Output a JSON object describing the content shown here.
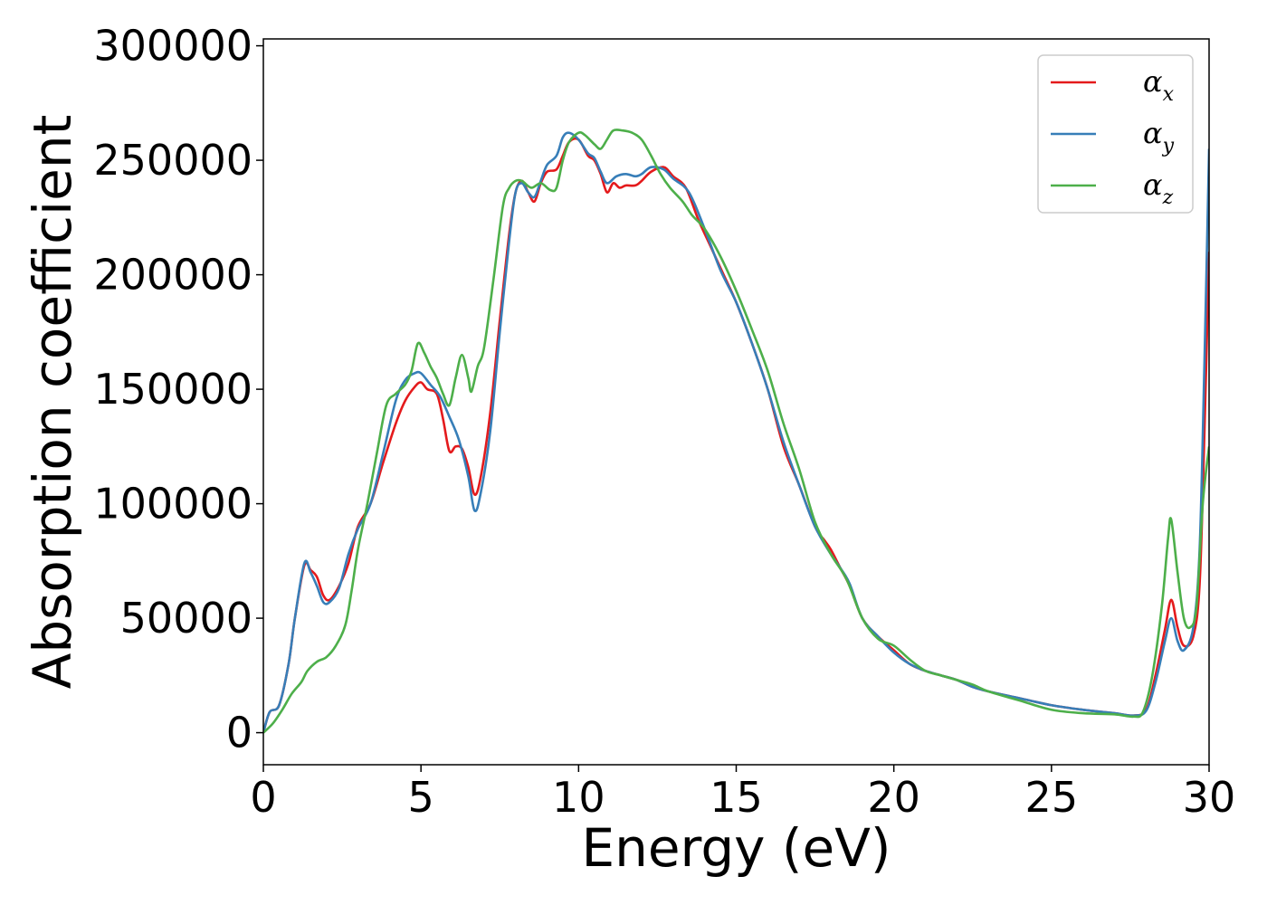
{
  "chart_data": {
    "type": "line",
    "title": "",
    "xlabel": "Energy (eV)",
    "ylabel": "Absorption coefficient",
    "xlim": [
      0,
      30
    ],
    "ylim": [
      -14000,
      303000
    ],
    "xticks": [
      0,
      5,
      10,
      15,
      20,
      25,
      30
    ],
    "xtick_labels": [
      "0",
      "5",
      "10",
      "15",
      "20",
      "25",
      "30"
    ],
    "yticks": [
      0,
      50000,
      100000,
      150000,
      200000,
      250000,
      300000
    ],
    "ytick_labels": [
      "0",
      "50000",
      "100000",
      "150000",
      "200000",
      "250000",
      "300000"
    ],
    "grid": false,
    "legend": {
      "placement": "top-right",
      "entries": [
        {
          "symbol": "α",
          "sub": "x",
          "color": "#e41a1c"
        },
        {
          "symbol": "α",
          "sub": "y",
          "color": "#377eb8"
        },
        {
          "symbol": "α",
          "sub": "z",
          "color": "#4daf4a"
        }
      ]
    },
    "series": [
      {
        "name": "αx",
        "color": "#e41a1c",
        "points": [
          [
            0,
            0
          ],
          [
            0.2,
            9000
          ],
          [
            0.5,
            12000
          ],
          [
            0.8,
            30000
          ],
          [
            1.0,
            50000
          ],
          [
            1.3,
            73000
          ],
          [
            1.5,
            71000
          ],
          [
            1.7,
            68000
          ],
          [
            1.9,
            60000
          ],
          [
            2.1,
            58000
          ],
          [
            2.4,
            64000
          ],
          [
            2.7,
            74000
          ],
          [
            3.0,
            90000
          ],
          [
            3.4,
            100000
          ],
          [
            3.8,
            118000
          ],
          [
            4.2,
            135000
          ],
          [
            4.5,
            145000
          ],
          [
            4.8,
            151000
          ],
          [
            5.0,
            153000
          ],
          [
            5.2,
            150000
          ],
          [
            5.5,
            148000
          ],
          [
            5.7,
            137000
          ],
          [
            5.9,
            123000
          ],
          [
            6.1,
            125000
          ],
          [
            6.3,
            124000
          ],
          [
            6.5,
            116000
          ],
          [
            6.7,
            104000
          ],
          [
            6.9,
            112000
          ],
          [
            7.2,
            140000
          ],
          [
            7.5,
            180000
          ],
          [
            7.8,
            218000
          ],
          [
            8.0,
            236000
          ],
          [
            8.2,
            241000
          ],
          [
            8.4,
            236000
          ],
          [
            8.6,
            232000
          ],
          [
            8.8,
            240000
          ],
          [
            9.0,
            245000
          ],
          [
            9.3,
            246000
          ],
          [
            9.5,
            252000
          ],
          [
            9.7,
            258000
          ],
          [
            10.0,
            259000
          ],
          [
            10.3,
            252000
          ],
          [
            10.5,
            250000
          ],
          [
            10.7,
            244000
          ],
          [
            10.9,
            236000
          ],
          [
            11.1,
            240000
          ],
          [
            11.3,
            238000
          ],
          [
            11.5,
            239000
          ],
          [
            11.8,
            239000
          ],
          [
            12.0,
            241000
          ],
          [
            12.3,
            245000
          ],
          [
            12.7,
            247000
          ],
          [
            13.0,
            243000
          ],
          [
            13.4,
            238000
          ],
          [
            13.8,
            224000
          ],
          [
            14.2,
            212000
          ],
          [
            14.6,
            200000
          ],
          [
            15.0,
            188000
          ],
          [
            15.5,
            170000
          ],
          [
            16.0,
            150000
          ],
          [
            16.5,
            125000
          ],
          [
            17.0,
            108000
          ],
          [
            17.5,
            90000
          ],
          [
            17.8,
            84000
          ],
          [
            18.0,
            80000
          ],
          [
            18.3,
            72000
          ],
          [
            18.6,
            64000
          ],
          [
            19.0,
            50000
          ],
          [
            19.5,
            42000
          ],
          [
            20.0,
            36000
          ],
          [
            20.5,
            30000
          ],
          [
            21.0,
            27000
          ],
          [
            21.5,
            25000
          ],
          [
            22.0,
            23000
          ],
          [
            22.5,
            20000
          ],
          [
            23.0,
            18000
          ],
          [
            24.0,
            15000
          ],
          [
            25.0,
            12000
          ],
          [
            26.0,
            10000
          ],
          [
            27.0,
            8500
          ],
          [
            27.6,
            7500
          ],
          [
            28.0,
            10000
          ],
          [
            28.3,
            25000
          ],
          [
            28.6,
            45000
          ],
          [
            28.8,
            58000
          ],
          [
            29.0,
            46000
          ],
          [
            29.2,
            38000
          ],
          [
            29.5,
            42000
          ],
          [
            29.7,
            65000
          ],
          [
            29.85,
            130000
          ],
          [
            30.0,
            210000
          ]
        ]
      },
      {
        "name": "αy",
        "color": "#377eb8",
        "points": [
          [
            0,
            0
          ],
          [
            0.2,
            9000
          ],
          [
            0.5,
            12000
          ],
          [
            0.8,
            30000
          ],
          [
            1.0,
            50000
          ],
          [
            1.3,
            74000
          ],
          [
            1.5,
            70000
          ],
          [
            1.7,
            64000
          ],
          [
            1.9,
            57000
          ],
          [
            2.1,
            57000
          ],
          [
            2.4,
            63000
          ],
          [
            2.7,
            78000
          ],
          [
            3.0,
            89000
          ],
          [
            3.4,
            100000
          ],
          [
            3.8,
            122000
          ],
          [
            4.2,
            145000
          ],
          [
            4.5,
            154000
          ],
          [
            4.8,
            157000
          ],
          [
            5.0,
            157000
          ],
          [
            5.3,
            152000
          ],
          [
            5.6,
            147000
          ],
          [
            5.9,
            138000
          ],
          [
            6.2,
            128000
          ],
          [
            6.5,
            112000
          ],
          [
            6.7,
            97000
          ],
          [
            6.9,
            105000
          ],
          [
            7.2,
            132000
          ],
          [
            7.5,
            175000
          ],
          [
            7.8,
            215000
          ],
          [
            8.0,
            236000
          ],
          [
            8.2,
            240000
          ],
          [
            8.4,
            236000
          ],
          [
            8.6,
            234000
          ],
          [
            8.8,
            241000
          ],
          [
            9.0,
            248000
          ],
          [
            9.3,
            252000
          ],
          [
            9.5,
            260000
          ],
          [
            9.7,
            262000
          ],
          [
            10.0,
            259000
          ],
          [
            10.3,
            253000
          ],
          [
            10.5,
            251000
          ],
          [
            10.7,
            245000
          ],
          [
            10.9,
            240000
          ],
          [
            11.2,
            243000
          ],
          [
            11.5,
            244000
          ],
          [
            11.8,
            243000
          ],
          [
            12.0,
            244000
          ],
          [
            12.3,
            247000
          ],
          [
            12.7,
            246000
          ],
          [
            13.0,
            242000
          ],
          [
            13.5,
            236000
          ],
          [
            14.0,
            220000
          ],
          [
            14.5,
            202000
          ],
          [
            15.0,
            188000
          ],
          [
            15.5,
            170000
          ],
          [
            16.0,
            150000
          ],
          [
            16.5,
            127000
          ],
          [
            17.0,
            108000
          ],
          [
            17.5,
            90000
          ],
          [
            18.0,
            78000
          ],
          [
            18.3,
            72000
          ],
          [
            18.6,
            65000
          ],
          [
            19.0,
            50000
          ],
          [
            19.5,
            42000
          ],
          [
            20.0,
            35000
          ],
          [
            20.5,
            30000
          ],
          [
            21.0,
            27000
          ],
          [
            21.5,
            25000
          ],
          [
            22.0,
            23000
          ],
          [
            22.5,
            20000
          ],
          [
            23.0,
            18000
          ],
          [
            24.0,
            15000
          ],
          [
            25.0,
            12000
          ],
          [
            26.0,
            10000
          ],
          [
            27.0,
            8500
          ],
          [
            27.6,
            7500
          ],
          [
            28.0,
            9500
          ],
          [
            28.3,
            22000
          ],
          [
            28.6,
            40000
          ],
          [
            28.8,
            50000
          ],
          [
            29.0,
            40000
          ],
          [
            29.2,
            36000
          ],
          [
            29.5,
            46000
          ],
          [
            29.7,
            80000
          ],
          [
            29.85,
            160000
          ],
          [
            30.0,
            255000
          ]
        ]
      },
      {
        "name": "αz",
        "color": "#4daf4a",
        "points": [
          [
            0,
            0
          ],
          [
            0.3,
            4000
          ],
          [
            0.6,
            10000
          ],
          [
            0.9,
            17000
          ],
          [
            1.2,
            22000
          ],
          [
            1.4,
            27000
          ],
          [
            1.7,
            31000
          ],
          [
            2.0,
            33000
          ],
          [
            2.3,
            38000
          ],
          [
            2.6,
            47000
          ],
          [
            2.8,
            62000
          ],
          [
            3.0,
            80000
          ],
          [
            3.3,
            100000
          ],
          [
            3.6,
            122000
          ],
          [
            3.9,
            143000
          ],
          [
            4.2,
            148000
          ],
          [
            4.5,
            152000
          ],
          [
            4.7,
            158000
          ],
          [
            4.9,
            170000
          ],
          [
            5.1,
            166000
          ],
          [
            5.3,
            160000
          ],
          [
            5.5,
            155000
          ],
          [
            5.7,
            148000
          ],
          [
            5.9,
            143000
          ],
          [
            6.1,
            155000
          ],
          [
            6.3,
            165000
          ],
          [
            6.5,
            155000
          ],
          [
            6.6,
            149000
          ],
          [
            6.8,
            160000
          ],
          [
            7.0,
            168000
          ],
          [
            7.3,
            198000
          ],
          [
            7.6,
            230000
          ],
          [
            7.8,
            238000
          ],
          [
            8.0,
            241000
          ],
          [
            8.2,
            241000
          ],
          [
            8.5,
            238000
          ],
          [
            8.8,
            240000
          ],
          [
            9.1,
            237000
          ],
          [
            9.3,
            238000
          ],
          [
            9.5,
            250000
          ],
          [
            9.7,
            258000
          ],
          [
            10.0,
            262000
          ],
          [
            10.2,
            261000
          ],
          [
            10.5,
            257000
          ],
          [
            10.7,
            255000
          ],
          [
            10.9,
            259000
          ],
          [
            11.1,
            263000
          ],
          [
            11.4,
            263000
          ],
          [
            11.7,
            262000
          ],
          [
            12.0,
            259000
          ],
          [
            12.3,
            252000
          ],
          [
            12.6,
            244000
          ],
          [
            12.9,
            238000
          ],
          [
            13.3,
            232000
          ],
          [
            13.6,
            226000
          ],
          [
            14.0,
            220000
          ],
          [
            14.5,
            208000
          ],
          [
            15.0,
            193000
          ],
          [
            15.5,
            176000
          ],
          [
            16.0,
            158000
          ],
          [
            16.5,
            135000
          ],
          [
            17.0,
            115000
          ],
          [
            17.5,
            92000
          ],
          [
            18.0,
            78000
          ],
          [
            18.5,
            67000
          ],
          [
            19.0,
            50000
          ],
          [
            19.5,
            41000
          ],
          [
            20.0,
            38000
          ],
          [
            20.5,
            32000
          ],
          [
            21.0,
            27000
          ],
          [
            21.5,
            25000
          ],
          [
            22.0,
            23000
          ],
          [
            22.5,
            21000
          ],
          [
            23.0,
            18000
          ],
          [
            24.0,
            14000
          ],
          [
            25.0,
            10000
          ],
          [
            26.0,
            8500
          ],
          [
            27.0,
            8000
          ],
          [
            27.6,
            7000
          ],
          [
            27.9,
            9000
          ],
          [
            28.2,
            25000
          ],
          [
            28.5,
            55000
          ],
          [
            28.7,
            85000
          ],
          [
            28.8,
            93000
          ],
          [
            29.0,
            70000
          ],
          [
            29.2,
            50000
          ],
          [
            29.4,
            46000
          ],
          [
            29.6,
            55000
          ],
          [
            29.8,
            100000
          ],
          [
            30.0,
            125000
          ]
        ]
      }
    ]
  }
}
